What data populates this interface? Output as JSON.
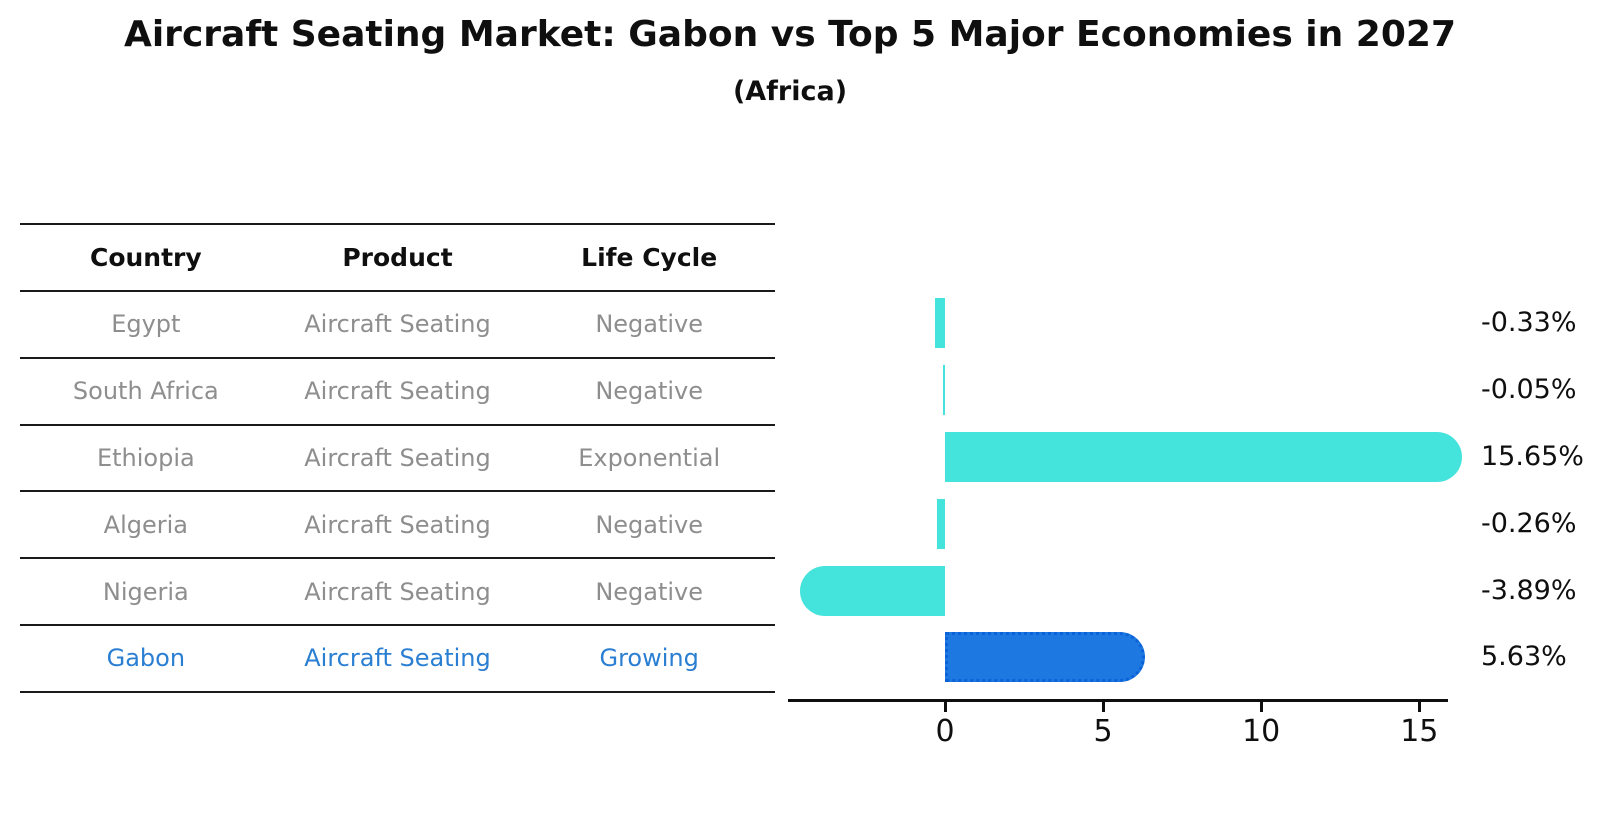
{
  "header": {
    "title": "Aircraft Seating Market: Gabon vs Top 5 Major Economies in 2027",
    "subtitle": "(Africa)"
  },
  "table": {
    "headers": {
      "country": "Country",
      "product": "Product",
      "life_cycle": "Life Cycle"
    },
    "rows": [
      {
        "country": "Egypt",
        "product": "Aircraft Seating",
        "life_cycle": "Negative",
        "highlight": false
      },
      {
        "country": "South Africa",
        "product": "Aircraft Seating",
        "life_cycle": "Negative",
        "highlight": false
      },
      {
        "country": "Ethiopia",
        "product": "Aircraft Seating",
        "life_cycle": "Exponential",
        "highlight": false
      },
      {
        "country": "Algeria",
        "product": "Aircraft Seating",
        "life_cycle": "Negative",
        "highlight": false
      },
      {
        "country": "Nigeria",
        "product": "Aircraft Seating",
        "life_cycle": "Negative",
        "highlight": false
      },
      {
        "country": "Gabon",
        "product": "Aircraft Seating",
        "life_cycle": "Growing",
        "highlight": true
      }
    ]
  },
  "chart_data": {
    "type": "bar",
    "orientation": "horizontal",
    "title": "Aircraft Seating Market: Gabon vs Top 5 Major Economies in 2027 (Africa)",
    "categories": [
      "Egypt",
      "South Africa",
      "Ethiopia",
      "Algeria",
      "Nigeria",
      "Gabon"
    ],
    "values": [
      -0.33,
      -0.05,
      15.65,
      -0.26,
      -3.89,
      5.63
    ],
    "value_labels": [
      "-0.33%",
      "-0.05%",
      "15.65%",
      "-0.26%",
      "-3.89%",
      "5.63%"
    ],
    "x_ticks": [
      0,
      5,
      10,
      15
    ],
    "xlim": [
      -5,
      16
    ],
    "grid": false,
    "legend": "none",
    "highlight_index": 5,
    "bar_color": "#44E3DB",
    "highlight_color": "#1E78E1",
    "highlight_border_color": "#0B62D9",
    "text_color": "#0F0F0F",
    "muted_text_color": "#8E8E8E",
    "highlight_text_color": "#2B7FD2"
  }
}
